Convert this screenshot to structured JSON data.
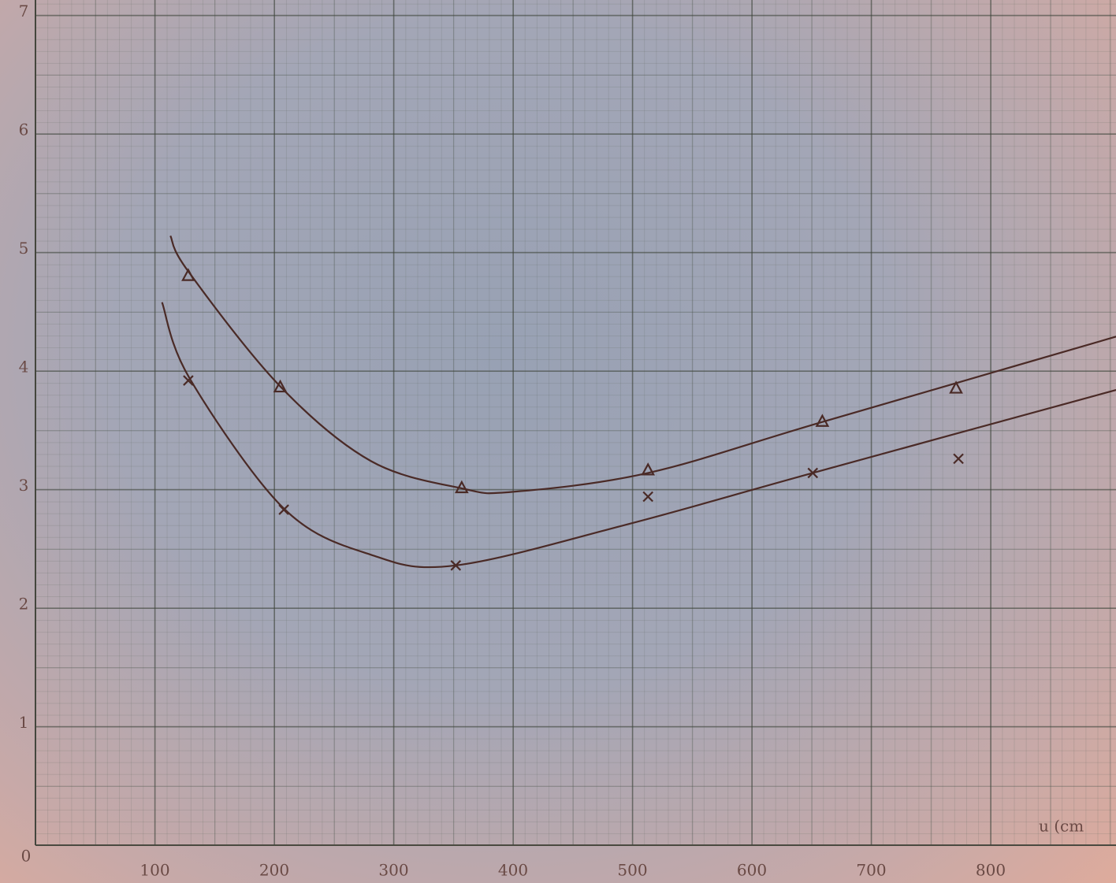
{
  "chart_data": {
    "type": "scatter",
    "x_label": "u (cm",
    "xlim": [
      0,
      905
    ],
    "ylim": [
      0,
      7.13
    ],
    "xticks": [
      0,
      100,
      200,
      300,
      400,
      500,
      600,
      700,
      800
    ],
    "yticks": [
      1,
      2,
      3,
      4,
      5,
      6,
      7
    ],
    "grid": true,
    "series": [
      {
        "marker": "triangle",
        "color": "#4a2a26",
        "x": [
          128,
          205,
          357,
          513,
          659,
          771
        ],
        "values": [
          4.8,
          3.86,
          3.01,
          3.16,
          3.57,
          3.85
        ]
      },
      {
        "marker": "cross",
        "color": "#4a2a26",
        "x": [
          128,
          208,
          352,
          513,
          651,
          773
        ],
        "values": [
          3.92,
          2.83,
          2.36,
          2.94,
          3.14,
          3.26
        ]
      }
    ],
    "curves": [
      {
        "color": "#4a2a26",
        "x": [
          113,
          128,
          205,
          281,
          357,
          399,
          513,
          659,
          905
        ],
        "values": [
          5.14,
          4.84,
          3.87,
          3.24,
          3.01,
          2.98,
          3.14,
          3.57,
          4.29
        ]
      },
      {
        "color": "#4a2a26",
        "x": [
          106,
          129,
          208,
          281,
          352,
          497,
          651,
          905
        ],
        "values": [
          4.58,
          3.94,
          2.84,
          2.45,
          2.36,
          2.71,
          3.14,
          3.84
        ]
      }
    ]
  }
}
